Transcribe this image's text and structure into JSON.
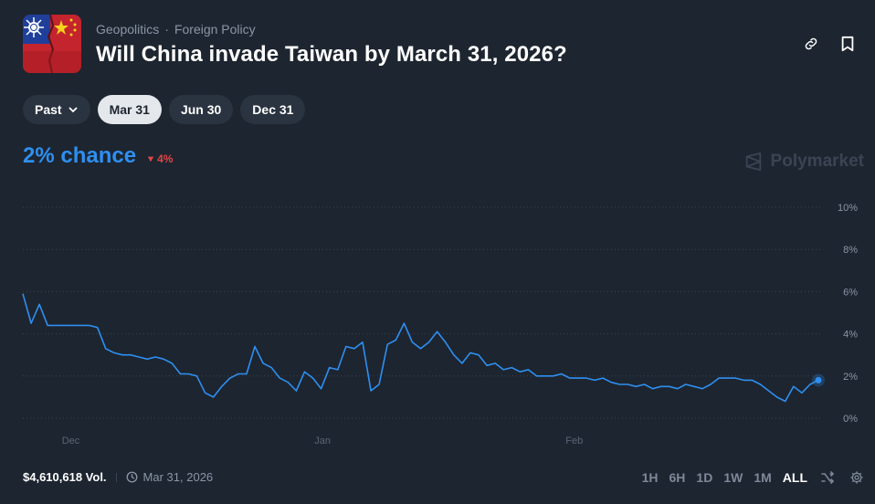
{
  "header": {
    "category1": "Geopolitics",
    "separator": "·",
    "category2": "Foreign Policy",
    "title": "Will China invade Taiwan by March 31, 2026?"
  },
  "tabs": [
    {
      "label": "Past",
      "active": false,
      "has_dropdown": true
    },
    {
      "label": "Mar 31",
      "active": true
    },
    {
      "label": "Jun 30",
      "active": false
    },
    {
      "label": "Dec 31",
      "active": false
    }
  ],
  "odds": {
    "chance": "2% chance",
    "change": "4%",
    "change_direction": "down"
  },
  "brand": "Polymarket",
  "colors": {
    "accent": "#2e8ff0",
    "negative": "#e04646",
    "background": "#1d2530"
  },
  "footer": {
    "volume": "$4,610,618 Vol.",
    "end_date": "Mar 31, 2026"
  },
  "ranges": [
    "1H",
    "6H",
    "1D",
    "1W",
    "1M",
    "ALL"
  ],
  "active_range": "ALL",
  "icons": [
    "link-icon",
    "bookmark-icon",
    "clock-icon",
    "shuffle-icon",
    "gear-icon"
  ],
  "chart_data": {
    "type": "line",
    "y_unit": "%",
    "ylim": [
      0,
      10
    ],
    "yticks": [
      "10%",
      "8%",
      "6%",
      "4%",
      "2%",
      "0%"
    ],
    "xticks": [
      "Dec",
      "Jan",
      "Feb"
    ],
    "grid": true,
    "series": [
      {
        "values": [
          5.9,
          4.5,
          5.4,
          4.4,
          4.4,
          4.4,
          4.4,
          4.4,
          4.4,
          4.3,
          3.3,
          3.1,
          3.0,
          3.0,
          2.9,
          2.8,
          2.9,
          2.8,
          2.6,
          2.1,
          2.1,
          2.0,
          1.2,
          1.0,
          1.5,
          1.9,
          2.1,
          2.1,
          3.4,
          2.6,
          2.4,
          1.9,
          1.7,
          1.3,
          2.2,
          1.9,
          1.4,
          2.4,
          2.3,
          3.4,
          3.3,
          3.6,
          1.3,
          1.6,
          3.5,
          3.7,
          4.5,
          3.6,
          3.3,
          3.6,
          4.1,
          3.6,
          3.0,
          2.6,
          3.1,
          3.0,
          2.5,
          2.6,
          2.3,
          2.4,
          2.2,
          2.3,
          2.0,
          2.0,
          2.0,
          2.1,
          1.9,
          1.9,
          1.9,
          1.8,
          1.9,
          1.7,
          1.6,
          1.6,
          1.5,
          1.6,
          1.4,
          1.5,
          1.5,
          1.4,
          1.6,
          1.5,
          1.4,
          1.6,
          1.9,
          1.9,
          1.9,
          1.8,
          1.8,
          1.6,
          1.3,
          1.0,
          0.8,
          1.5,
          1.2,
          1.6,
          1.8
        ]
      }
    ]
  }
}
